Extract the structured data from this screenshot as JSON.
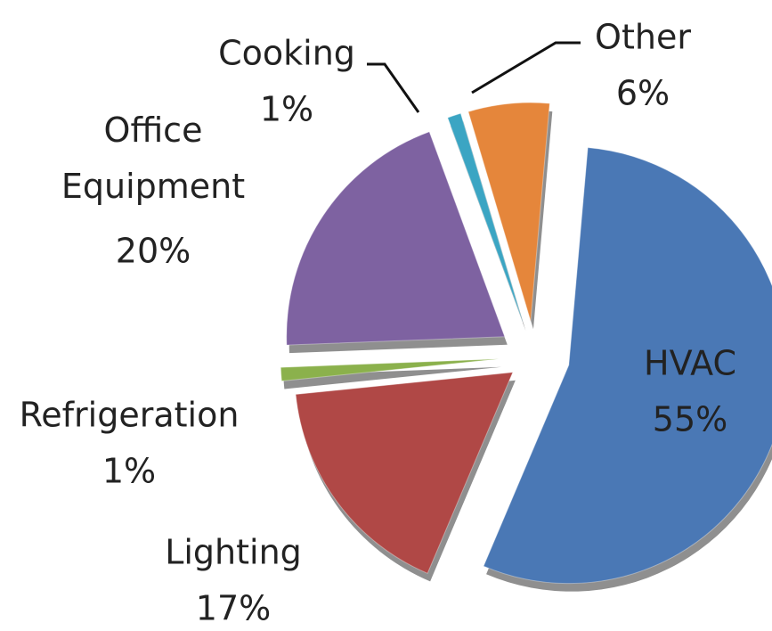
{
  "chart_data": {
    "type": "pie",
    "categories": [
      "HVAC",
      "Lighting",
      "Refrigeration",
      "Office Equipment",
      "Cooking",
      "Other"
    ],
    "values": [
      55,
      17,
      1,
      20,
      1,
      6
    ],
    "value_labels": [
      "55%",
      "17%",
      "1%",
      "20%",
      "1%",
      "6%"
    ],
    "colors": [
      "#4a78b5",
      "#b04846",
      "#8bb14c",
      "#7e62a1",
      "#3ba5c3",
      "#e5863b"
    ]
  }
}
